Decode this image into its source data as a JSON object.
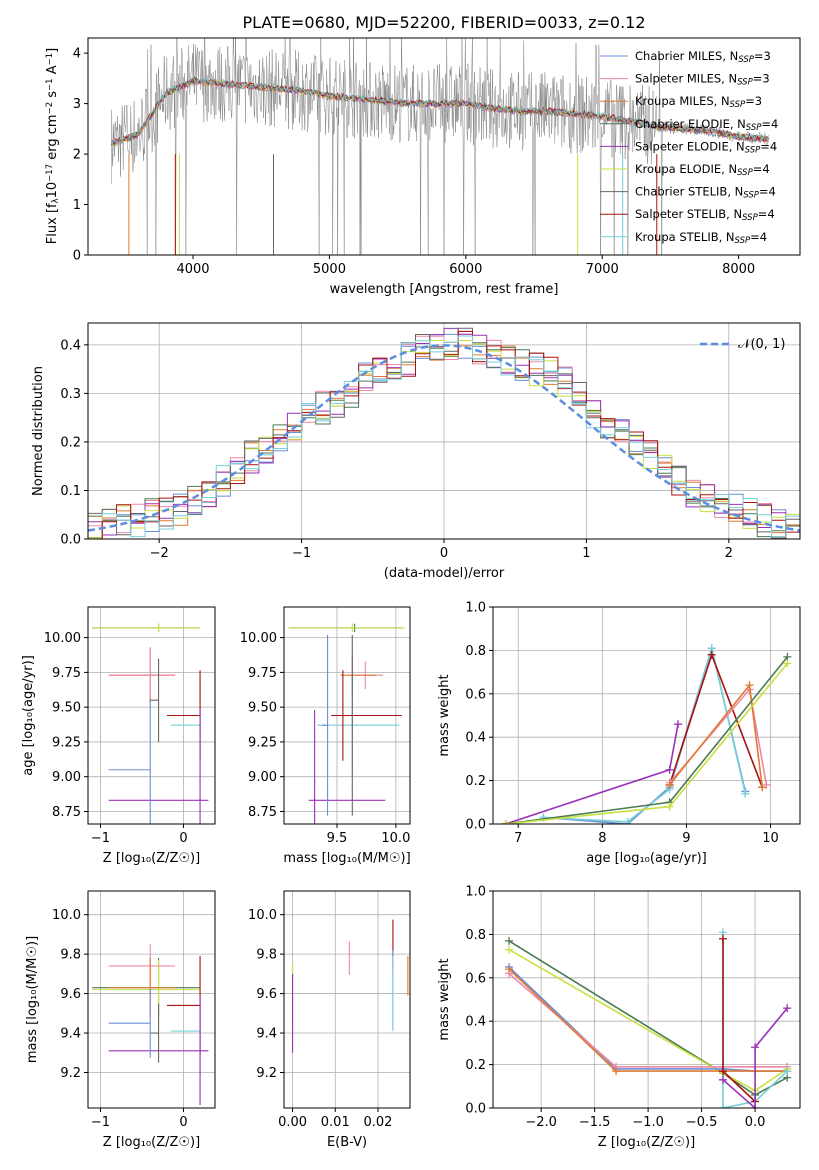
{
  "figure": {
    "title": "PLATE=0680, MJD=52200, FIBERID=0033, z=0.12"
  },
  "colors": {
    "obs": "#808080",
    "series": [
      "#6a8fd8",
      "#ee88aa",
      "#e07a30",
      "#4a7a50",
      "#9a32b8",
      "#c8e040",
      "#666666",
      "#aa1111",
      "#76d0d8"
    ],
    "normal": "#5b8ee0"
  },
  "chart_data": [
    {
      "type": "line",
      "id": "spectrum",
      "title": "PLATE=0680, MJD=52200, FIBERID=0033, z=0.12",
      "xlabel": "wavelength [Angstrom, rest frame]",
      "ylabel_parts": {
        "a": "Flux [f",
        "sub": "λ",
        "b": "10",
        "sup1": "−17",
        "c": " erg cm",
        "sup2": "−2",
        "d": " s",
        "sup3": "−1",
        "e": " A",
        "sup4": "−1",
        "f": "]"
      },
      "xlim": [
        3230,
        8450
      ],
      "ylim": [
        0,
        4.3
      ],
      "xticks": [
        4000,
        5000,
        6000,
        7000,
        8000
      ],
      "yticks": [
        0,
        1,
        2,
        3,
        4
      ],
      "legend_position": "top-right",
      "x": [
        3400,
        3600,
        3800,
        4000,
        4200,
        4400,
        4600,
        4800,
        5000,
        5200,
        5400,
        5600,
        5800,
        6000,
        6200,
        6400,
        6600,
        6800,
        7000,
        7200,
        7400,
        7600,
        7800,
        8000,
        8200
      ],
      "y": [
        2.2,
        2.4,
        3.2,
        3.45,
        3.4,
        3.35,
        3.3,
        3.25,
        3.15,
        3.1,
        3.05,
        3.0,
        3.0,
        3.0,
        2.9,
        2.85,
        2.85,
        2.8,
        2.75,
        2.65,
        2.55,
        2.5,
        2.45,
        2.35,
        2.3
      ],
      "series": [
        {
          "label": "Chabrier MILES, N",
          "sub": "SSP",
          "val": "=3"
        },
        {
          "label": "Salpeter MILES, N",
          "sub": "SSP",
          "val": "=3"
        },
        {
          "label": "Kroupa MILES, N",
          "sub": "SSP",
          "val": "=3"
        },
        {
          "label": "Chabrier ELODIE, N",
          "sub": "SSP",
          "val": "=4"
        },
        {
          "label": "Salpeter ELODIE, N",
          "sub": "SSP",
          "val": "=4"
        },
        {
          "label": "Kroupa ELODIE, N",
          "sub": "SSP",
          "val": "=4"
        },
        {
          "label": "Chabrier STELIB, N",
          "sub": "SSP",
          "val": "=4"
        },
        {
          "label": "Salpeter STELIB, N",
          "sub": "SSP",
          "val": "=4"
        },
        {
          "label": "Kroupa STELIB, N",
          "sub": "SSP",
          "val": "=4"
        }
      ]
    },
    {
      "type": "line",
      "id": "residuals",
      "xlabel": "(data-model)/error",
      "ylabel": "Normed distribution",
      "xlim": [
        -2.5,
        2.5
      ],
      "ylim": [
        0,
        0.445
      ],
      "xticks": [
        -2,
        -1,
        0,
        1,
        2
      ],
      "yticks": [
        0.0,
        0.1,
        0.2,
        0.3,
        0.4
      ],
      "grid": true,
      "legend_position": "top-right",
      "legend": "𝒩(0, 1)",
      "normal_curve": {
        "mean": 0,
        "sigma": 1
      },
      "bins": [
        -2.5,
        -2.4,
        -2.3,
        -2.2,
        -2.1,
        -2.0,
        -1.9,
        -1.8,
        -1.7,
        -1.6,
        -1.5,
        -1.4,
        -1.3,
        -1.2,
        -1.1,
        -1.0,
        -0.9,
        -0.8,
        -0.7,
        -0.6,
        -0.5,
        -0.4,
        -0.3,
        -0.2,
        -0.1,
        0.0,
        0.1,
        0.2,
        0.3,
        0.4,
        0.5,
        0.6,
        0.7,
        0.8,
        0.9,
        1.0,
        1.1,
        1.2,
        1.3,
        1.4,
        1.5,
        1.6,
        1.7,
        1.8,
        1.9,
        2.0,
        2.1,
        2.2,
        2.3,
        2.4,
        2.5
      ],
      "histogram": [
        0.02,
        0.03,
        0.04,
        0.04,
        0.05,
        0.05,
        0.06,
        0.08,
        0.1,
        0.12,
        0.14,
        0.17,
        0.19,
        0.21,
        0.23,
        0.25,
        0.27,
        0.28,
        0.3,
        0.33,
        0.35,
        0.36,
        0.37,
        0.39,
        0.39,
        0.4,
        0.4,
        0.39,
        0.38,
        0.37,
        0.36,
        0.35,
        0.34,
        0.32,
        0.3,
        0.26,
        0.24,
        0.22,
        0.19,
        0.17,
        0.14,
        0.12,
        0.1,
        0.09,
        0.07,
        0.06,
        0.05,
        0.04,
        0.03,
        0.02
      ]
    },
    {
      "type": "scatter",
      "id": "age-vs-Z",
      "xlabel": "Z [log₁₀(Z/Z☉)]",
      "ylabel": "age  [log₁₀(age/yr)]",
      "xlim": [
        -1.15,
        0.38
      ],
      "ylim": [
        8.66,
        10.22
      ],
      "xticks": [
        -1,
        0
      ],
      "yticks": [
        8.75,
        9.0,
        9.25,
        9.5,
        9.75,
        10.0
      ],
      "grid": true,
      "points": [
        {
          "x": -0.3,
          "y": 10.07,
          "xerr": [
            0.8,
            0.5
          ],
          "yerr": 0.06,
          "c": 3
        },
        {
          "x": -0.3,
          "y": 10.07,
          "xerr": [
            0.8,
            0.5
          ],
          "yerr": 0.06,
          "c": 5
        },
        {
          "x": -0.4,
          "y": 9.73,
          "xerr": [
            0.5,
            0.3
          ],
          "yerr": 0.4,
          "c": 2
        },
        {
          "x": -0.4,
          "y": 9.73,
          "xerr": [
            0.5,
            0.3
          ],
          "yerr": 0.4,
          "c": 1
        },
        {
          "x": 0.2,
          "y": 9.37,
          "xerr": [
            0.35,
            0.0
          ],
          "yerr": 0.7,
          "c": 8
        },
        {
          "x": 0.2,
          "y": 9.44,
          "xerr": [
            0.4,
            0.0
          ],
          "yerr": 0.65,
          "c": 7
        },
        {
          "x": 0.2,
          "y": 8.83,
          "xerr": [
            1.1,
            0.1
          ],
          "yerr": 1.3,
          "c": 4
        },
        {
          "x": -0.3,
          "y": 9.55,
          "xerr": [
            0.1,
            0.0
          ],
          "yerr": 0.6,
          "c": 6
        },
        {
          "x": -0.4,
          "y": 9.05,
          "xerr": [
            0.5,
            0.0
          ],
          "yerr": 1.0,
          "c": 0
        }
      ]
    },
    {
      "type": "scatter",
      "id": "age-vs-mass",
      "xlabel": "mass [log₁₀(M/M☉)]",
      "xlim": [
        9.05,
        10.12
      ],
      "ylim": [
        8.66,
        10.22
      ],
      "xticks": [
        9.5,
        10.0
      ],
      "yticks": [
        8.75,
        9.0,
        9.25,
        9.5,
        9.75,
        10.0
      ],
      "grid": true,
      "points": [
        {
          "x": 9.65,
          "y": 10.07,
          "xerr": [
            0.55,
            0.4
          ],
          "yerr": 0.06,
          "c": 3
        },
        {
          "x": 9.63,
          "y": 10.07,
          "xerr": [
            0.55,
            0.45
          ],
          "yerr": 0.06,
          "c": 5
        },
        {
          "x": 9.74,
          "y": 9.73,
          "xerr": [
            0.15,
            0.15
          ],
          "yerr": 0.2,
          "c": 1
        },
        {
          "x": 9.63,
          "y": 9.73,
          "xerr": [
            0.1,
            0.2
          ],
          "yerr": 0.3,
          "c": 2
        },
        {
          "x": 9.63,
          "y": 9.37,
          "xerr": [
            0.3,
            0.4
          ],
          "yerr": 0.7,
          "c": 8
        },
        {
          "x": 9.55,
          "y": 9.44,
          "xerr": [
            0.1,
            0.5
          ],
          "yerr": 0.65,
          "c": 7
        },
        {
          "x": 9.31,
          "y": 8.83,
          "xerr": [
            0.05,
            0.6
          ],
          "yerr": 1.3,
          "c": 4
        },
        {
          "x": 9.42,
          "y": 9.37,
          "xerr": [
            0.05,
            0.0
          ],
          "yerr": 1.3,
          "c": 0
        },
        {
          "x": 9.63,
          "y": 9.37,
          "xerr": [
            0.0,
            0.0
          ],
          "yerr": 1.3,
          "c": 6
        }
      ]
    },
    {
      "type": "line",
      "id": "weight-vs-age",
      "xlabel": "age  [log₁₀(age/yr)]",
      "ylabel": "mass weight",
      "xlim": [
        6.7,
        10.35
      ],
      "ylim": [
        0,
        1.0
      ],
      "xticks": [
        7,
        8,
        9,
        10
      ],
      "yticks": [
        0.0,
        0.2,
        0.4,
        0.6,
        0.8,
        1.0
      ],
      "grid": true,
      "series": [
        {
          "c": 0,
          "x": [
            7.3,
            8.3,
            8.8,
            9.3,
            9.7
          ],
          "y": [
            0.03,
            0.0,
            0.17,
            0.81,
            0.15
          ]
        },
        {
          "c": 8,
          "x": [
            7.3,
            8.3,
            8.8,
            9.3,
            9.7
          ],
          "y": [
            0.03,
            0.01,
            0.16,
            0.81,
            0.14
          ]
        },
        {
          "c": 7,
          "x": [
            8.8,
            9.3,
            9.9
          ],
          "y": [
            0.18,
            0.78,
            0.17
          ]
        },
        {
          "c": 1,
          "x": [
            8.8,
            9.75,
            9.95
          ],
          "y": [
            0.19,
            0.62,
            0.18
          ]
        },
        {
          "c": 2,
          "x": [
            8.8,
            9.75,
            9.9
          ],
          "y": [
            0.18,
            0.64,
            0.17
          ]
        },
        {
          "c": 4,
          "x": [
            6.85,
            8.8,
            8.9
          ],
          "y": [
            0.0,
            0.25,
            0.46
          ]
        },
        {
          "c": 3,
          "x": [
            6.85,
            8.8,
            10.2
          ],
          "y": [
            0.0,
            0.1,
            0.77
          ]
        },
        {
          "c": 5,
          "x": [
            6.85,
            8.8,
            10.2
          ],
          "y": [
            0.0,
            0.08,
            0.74
          ]
        }
      ]
    },
    {
      "type": "scatter",
      "id": "mass-vs-Z",
      "xlabel": "Z [log₁₀(Z/Z☉)]",
      "ylabel": "mass [log₁₀(M/M☉)]",
      "xlim": [
        -1.15,
        0.38
      ],
      "ylim": [
        9.02,
        10.12
      ],
      "xticks": [
        -1,
        0
      ],
      "yticks": [
        9.2,
        9.4,
        9.6,
        9.8,
        10.0
      ],
      "grid": true,
      "points": [
        {
          "x": -0.3,
          "y": 9.63,
          "xerr": [
            0.8,
            0.5
          ],
          "yerr": 0.3,
          "c": 3
        },
        {
          "x": -0.3,
          "y": 9.62,
          "xerr": [
            0.8,
            0.5
          ],
          "yerr": 0.3,
          "c": 5
        },
        {
          "x": -0.4,
          "y": 9.74,
          "xerr": [
            0.5,
            0.3
          ],
          "yerr": 0.22,
          "c": 1
        },
        {
          "x": -0.4,
          "y": 9.63,
          "xerr": [
            0.5,
            0.3
          ],
          "yerr": 0.3,
          "c": 2
        },
        {
          "x": 0.2,
          "y": 9.41,
          "xerr": [
            0.35,
            0.0
          ],
          "yerr": 0.45,
          "c": 8
        },
        {
          "x": 0.2,
          "y": 9.54,
          "xerr": [
            0.4,
            0.0
          ],
          "yerr": 0.5,
          "c": 7
        },
        {
          "x": 0.2,
          "y": 9.31,
          "xerr": [
            1.1,
            0.1
          ],
          "yerr": 0.55,
          "c": 4
        },
        {
          "x": -0.3,
          "y": 9.4,
          "xerr": [
            0.1,
            0.0
          ],
          "yerr": 0.3,
          "c": 6
        },
        {
          "x": -0.4,
          "y": 9.45,
          "xerr": [
            0.5,
            0.0
          ],
          "yerr": 0.35,
          "c": 0
        }
      ]
    },
    {
      "type": "scatter",
      "id": "mass-vs-ebv",
      "xlabel": "E(B-V)",
      "xlim": [
        -0.002,
        0.0275
      ],
      "ylim": [
        9.02,
        10.12
      ],
      "xticks": [
        0.0,
        0.01,
        0.02
      ],
      "xticklabels": [
        "0.00",
        "0.01",
        "0.02"
      ],
      "yticks": [
        9.2,
        9.4,
        9.6,
        9.8,
        10.0
      ],
      "grid": true,
      "points": [
        {
          "x": 0.0,
          "y": 9.6,
          "yerr": 0.3,
          "c": 0
        },
        {
          "x": 0.0,
          "y": 9.55,
          "yerr": 0.4,
          "c": 5
        },
        {
          "x": 0.0,
          "y": 9.5,
          "yerr": 0.4,
          "c": 4
        },
        {
          "x": 0.0133,
          "y": 9.78,
          "yerr": 0.17,
          "c": 1
        },
        {
          "x": 0.0235,
          "y": 9.85,
          "yerr": 0.25,
          "c": 7
        },
        {
          "x": 0.0235,
          "y": 9.62,
          "yerr": 0.4,
          "c": 0
        },
        {
          "x": 0.0235,
          "y": 9.6,
          "yerr": 0.38,
          "c": 8
        },
        {
          "x": 0.027,
          "y": 9.69,
          "yerr": 0.2,
          "c": 2
        }
      ]
    },
    {
      "type": "line",
      "id": "weight-vs-Z",
      "xlabel": "Z [log₁₀(Z/Z☉)]",
      "ylabel": "mass weight",
      "xlim": [
        -2.45,
        0.42
      ],
      "ylim": [
        0,
        1.0
      ],
      "xticks": [
        -2.0,
        -1.5,
        -1.0,
        -0.5,
        0.0
      ],
      "xticklabels": [
        "−2.0",
        "−1.5",
        "−1.0",
        "−0.5",
        "0.0"
      ],
      "yticks": [
        0.0,
        0.2,
        0.4,
        0.6,
        0.8,
        1.0
      ],
      "grid": true,
      "series": [
        {
          "c": 3,
          "x": [
            -2.3,
            -0.3,
            0.0,
            0.3
          ],
          "y": [
            0.77,
            0.16,
            0.06,
            0.14
          ]
        },
        {
          "c": 5,
          "x": [
            -2.3,
            -0.3,
            0.0,
            0.3
          ],
          "y": [
            0.73,
            0.16,
            0.08,
            0.18
          ]
        },
        {
          "c": 0,
          "x": [
            -2.3,
            -1.3,
            -0.3,
            0.0,
            0.3
          ],
          "y": [
            0.65,
            0.18,
            0.18,
            0.17,
            0.17
          ]
        },
        {
          "c": 1,
          "x": [
            -2.3,
            -1.3,
            -0.3,
            0.0,
            0.3
          ],
          "y": [
            0.62,
            0.19,
            0.19,
            0.19,
            0.19
          ]
        },
        {
          "c": 2,
          "x": [
            -2.3,
            -1.3,
            -0.3,
            0.0,
            0.3
          ],
          "y": [
            0.64,
            0.17,
            0.17,
            0.17,
            0.17
          ]
        },
        {
          "c": 8,
          "x": [
            -0.3,
            -0.3,
            0.0,
            0.3
          ],
          "y": [
            0.81,
            0.0,
            0.03,
            0.17
          ]
        },
        {
          "c": 7,
          "x": [
            -0.3,
            -0.3,
            0.0
          ],
          "y": [
            0.78,
            0.17,
            0.03
          ]
        },
        {
          "c": 4,
          "x": [
            -0.3,
            0.0,
            0.0,
            0.3
          ],
          "y": [
            0.13,
            0.0,
            0.28,
            0.46
          ]
        }
      ]
    }
  ]
}
